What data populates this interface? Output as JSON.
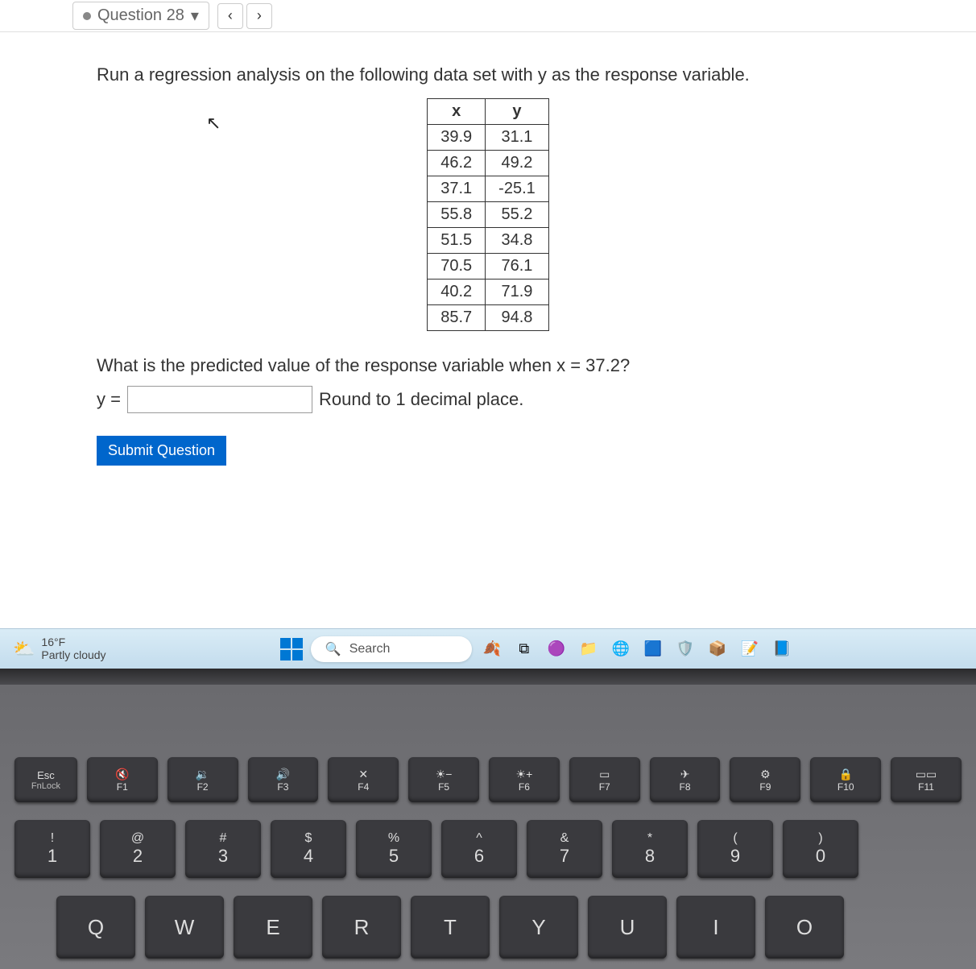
{
  "topbar": {
    "question_label": "Question 28"
  },
  "prompt": "Run a regression analysis on the following data set with y as the response variable.",
  "table": {
    "headers": [
      "x",
      "y"
    ],
    "rows": [
      [
        "39.9",
        "31.1"
      ],
      [
        "46.2",
        "49.2"
      ],
      [
        "37.1",
        "-25.1"
      ],
      [
        "55.8",
        "55.2"
      ],
      [
        "51.5",
        "34.8"
      ],
      [
        "70.5",
        "76.1"
      ],
      [
        "40.2",
        "71.9"
      ],
      [
        "85.7",
        "94.8"
      ]
    ]
  },
  "question": "What is the predicted value of the response variable when x = 37.2?",
  "answer": {
    "label": "y =",
    "hint": "Round to 1 decimal place."
  },
  "submit_label": "Submit Question",
  "taskbar": {
    "weather_temp": "16°F",
    "weather_desc": "Partly cloudy",
    "search_placeholder": "Search"
  },
  "keyboard": {
    "fn_row": [
      {
        "main": "Esc",
        "sub": "FnLock",
        "cls": "esc",
        "icon": ""
      },
      {
        "main": "F1",
        "icon": "🔇",
        "cls": "fn"
      },
      {
        "main": "F2",
        "icon": "🔉",
        "cls": "fn"
      },
      {
        "main": "F3",
        "icon": "🔊",
        "cls": "fn"
      },
      {
        "main": "F4",
        "icon": "✕",
        "cls": "fn"
      },
      {
        "main": "F5",
        "icon": "☀−",
        "cls": "fn"
      },
      {
        "main": "F6",
        "icon": "☀+",
        "cls": "fn"
      },
      {
        "main": "F7",
        "icon": "▭",
        "cls": "fn"
      },
      {
        "main": "F8",
        "icon": "✈",
        "cls": "fn"
      },
      {
        "main": "F9",
        "icon": "⚙",
        "cls": "fn"
      },
      {
        "main": "F10",
        "icon": "🔒",
        "cls": "fn"
      },
      {
        "main": "F11",
        "icon": "▭▭",
        "cls": "fn"
      }
    ],
    "num_row": [
      {
        "top": "!",
        "bot": "1"
      },
      {
        "top": "@",
        "bot": "2"
      },
      {
        "top": "#",
        "bot": "3"
      },
      {
        "top": "$",
        "bot": "4"
      },
      {
        "top": "%",
        "bot": "5"
      },
      {
        "top": "^",
        "bot": "6"
      },
      {
        "top": "&",
        "bot": "7"
      },
      {
        "top": "*",
        "bot": "8"
      },
      {
        "top": "(",
        "bot": "9"
      },
      {
        "top": ")",
        "bot": "0"
      }
    ],
    "qwerty_row": [
      "Q",
      "W",
      "E",
      "R",
      "T",
      "Y",
      "U",
      "I",
      "O"
    ]
  },
  "colors": {
    "submit_bg": "#0066cc",
    "taskbar_bg": "#c3dced",
    "key_bg": "#3a3a3e"
  }
}
